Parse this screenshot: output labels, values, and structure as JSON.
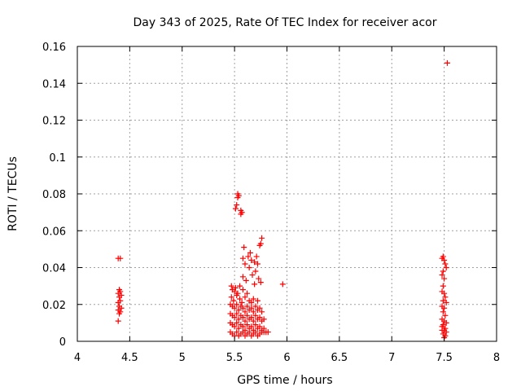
{
  "chart_data": {
    "type": "scatter",
    "title": "Day 343 of 2025, Rate Of TEC Index for receiver acor",
    "xlabel": "GPS time / hours",
    "ylabel": "ROTI / TECUs",
    "xlim": [
      4,
      8
    ],
    "ylim": [
      0,
      0.16
    ],
    "xticks": [
      "4",
      "4.5",
      "5",
      "5.5",
      "6",
      "6.5",
      "7",
      "7.5",
      "8"
    ],
    "yticks": [
      "0",
      "0.02",
      "0.04",
      "0.06",
      "0.08",
      "0.1",
      "0.12",
      "0.14",
      "0.16"
    ],
    "grid": true,
    "marker": "plus",
    "color": "#ff0000",
    "series": [
      {
        "name": "ROTI",
        "points": [
          [
            4.39,
            0.045
          ],
          [
            4.41,
            0.045
          ],
          [
            4.4,
            0.028
          ],
          [
            4.41,
            0.027
          ],
          [
            4.39,
            0.026
          ],
          [
            4.42,
            0.025
          ],
          [
            4.4,
            0.024
          ],
          [
            4.41,
            0.022
          ],
          [
            4.39,
            0.021
          ],
          [
            4.4,
            0.019
          ],
          [
            4.42,
            0.018
          ],
          [
            4.39,
            0.017
          ],
          [
            4.41,
            0.016
          ],
          [
            4.4,
            0.015
          ],
          [
            4.39,
            0.011
          ],
          [
            5.53,
            0.08
          ],
          [
            5.54,
            0.079
          ],
          [
            5.53,
            0.078
          ],
          [
            5.52,
            0.074
          ],
          [
            5.51,
            0.072
          ],
          [
            5.56,
            0.071
          ],
          [
            5.57,
            0.07
          ],
          [
            5.56,
            0.069
          ],
          [
            5.76,
            0.056
          ],
          [
            5.75,
            0.053
          ],
          [
            5.74,
            0.052
          ],
          [
            5.59,
            0.051
          ],
          [
            5.65,
            0.048
          ],
          [
            5.63,
            0.046
          ],
          [
            5.71,
            0.046
          ],
          [
            5.58,
            0.045
          ],
          [
            5.66,
            0.044
          ],
          [
            5.69,
            0.043
          ],
          [
            5.6,
            0.042
          ],
          [
            5.72,
            0.042
          ],
          [
            5.64,
            0.04
          ],
          [
            5.7,
            0.038
          ],
          [
            5.67,
            0.036
          ],
          [
            5.58,
            0.035
          ],
          [
            5.61,
            0.033
          ],
          [
            5.73,
            0.034
          ],
          [
            5.75,
            0.032
          ],
          [
            5.69,
            0.031
          ],
          [
            5.96,
            0.031
          ],
          [
            5.55,
            0.03
          ],
          [
            5.47,
            0.03
          ],
          [
            5.48,
            0.028
          ],
          [
            5.51,
            0.029
          ],
          [
            5.5,
            0.027
          ],
          [
            5.53,
            0.026
          ],
          [
            5.58,
            0.028
          ],
          [
            5.62,
            0.026
          ],
          [
            5.47,
            0.024
          ],
          [
            5.52,
            0.025
          ],
          [
            5.55,
            0.023
          ],
          [
            5.6,
            0.024
          ],
          [
            5.64,
            0.022
          ],
          [
            5.68,
            0.023
          ],
          [
            5.49,
            0.022
          ],
          [
            5.57,
            0.021
          ],
          [
            5.66,
            0.021
          ],
          [
            5.72,
            0.022
          ],
          [
            5.46,
            0.02
          ],
          [
            5.48,
            0.019
          ],
          [
            5.5,
            0.018
          ],
          [
            5.52,
            0.02
          ],
          [
            5.54,
            0.017
          ],
          [
            5.56,
            0.019
          ],
          [
            5.58,
            0.018
          ],
          [
            5.6,
            0.016
          ],
          [
            5.62,
            0.019
          ],
          [
            5.64,
            0.017
          ],
          [
            5.66,
            0.018
          ],
          [
            5.68,
            0.016
          ],
          [
            5.7,
            0.019
          ],
          [
            5.72,
            0.017
          ],
          [
            5.74,
            0.018
          ],
          [
            5.76,
            0.016
          ],
          [
            5.46,
            0.015
          ],
          [
            5.48,
            0.014
          ],
          [
            5.5,
            0.013
          ],
          [
            5.52,
            0.015
          ],
          [
            5.54,
            0.012
          ],
          [
            5.56,
            0.014
          ],
          [
            5.58,
            0.013
          ],
          [
            5.6,
            0.011
          ],
          [
            5.62,
            0.014
          ],
          [
            5.64,
            0.012
          ],
          [
            5.66,
            0.013
          ],
          [
            5.68,
            0.011
          ],
          [
            5.7,
            0.014
          ],
          [
            5.72,
            0.012
          ],
          [
            5.74,
            0.013
          ],
          [
            5.76,
            0.011
          ],
          [
            5.78,
            0.012
          ],
          [
            5.46,
            0.01
          ],
          [
            5.48,
            0.009
          ],
          [
            5.5,
            0.008
          ],
          [
            5.52,
            0.01
          ],
          [
            5.54,
            0.007
          ],
          [
            5.56,
            0.009
          ],
          [
            5.58,
            0.008
          ],
          [
            5.6,
            0.006
          ],
          [
            5.62,
            0.009
          ],
          [
            5.64,
            0.007
          ],
          [
            5.66,
            0.008
          ],
          [
            5.68,
            0.006
          ],
          [
            5.7,
            0.009
          ],
          [
            5.72,
            0.007
          ],
          [
            5.74,
            0.008
          ],
          [
            5.76,
            0.006
          ],
          [
            5.78,
            0.007
          ],
          [
            5.46,
            0.005
          ],
          [
            5.48,
            0.004
          ],
          [
            5.5,
            0.003
          ],
          [
            5.52,
            0.005
          ],
          [
            5.54,
            0.003
          ],
          [
            5.56,
            0.004
          ],
          [
            5.58,
            0.005
          ],
          [
            5.6,
            0.003
          ],
          [
            5.62,
            0.004
          ],
          [
            5.64,
            0.005
          ],
          [
            5.66,
            0.003
          ],
          [
            5.68,
            0.004
          ],
          [
            5.7,
            0.005
          ],
          [
            5.72,
            0.003
          ],
          [
            5.74,
            0.004
          ],
          [
            5.76,
            0.005
          ],
          [
            5.78,
            0.005
          ],
          [
            5.8,
            0.005
          ],
          [
            5.82,
            0.005
          ],
          [
            7.49,
            0.046
          ],
          [
            7.48,
            0.045
          ],
          [
            7.5,
            0.044
          ],
          [
            7.51,
            0.042
          ],
          [
            7.52,
            0.04
          ],
          [
            7.49,
            0.038
          ],
          [
            7.48,
            0.036
          ],
          [
            7.5,
            0.034
          ],
          [
            7.49,
            0.03
          ],
          [
            7.48,
            0.027
          ],
          [
            7.5,
            0.026
          ],
          [
            7.51,
            0.024
          ],
          [
            7.49,
            0.022
          ],
          [
            7.52,
            0.021
          ],
          [
            7.48,
            0.019
          ],
          [
            7.5,
            0.018
          ],
          [
            7.49,
            0.016
          ],
          [
            7.51,
            0.014
          ],
          [
            7.48,
            0.012
          ],
          [
            7.5,
            0.011
          ],
          [
            7.52,
            0.01
          ],
          [
            7.49,
            0.009
          ],
          [
            7.48,
            0.008
          ],
          [
            7.51,
            0.007
          ],
          [
            7.5,
            0.006
          ],
          [
            7.52,
            0.005
          ],
          [
            7.49,
            0.004
          ],
          [
            7.51,
            0.003
          ],
          [
            7.48,
            0.006
          ],
          [
            7.5,
            0.002
          ],
          [
            7.53,
            0.151
          ]
        ]
      }
    ]
  }
}
